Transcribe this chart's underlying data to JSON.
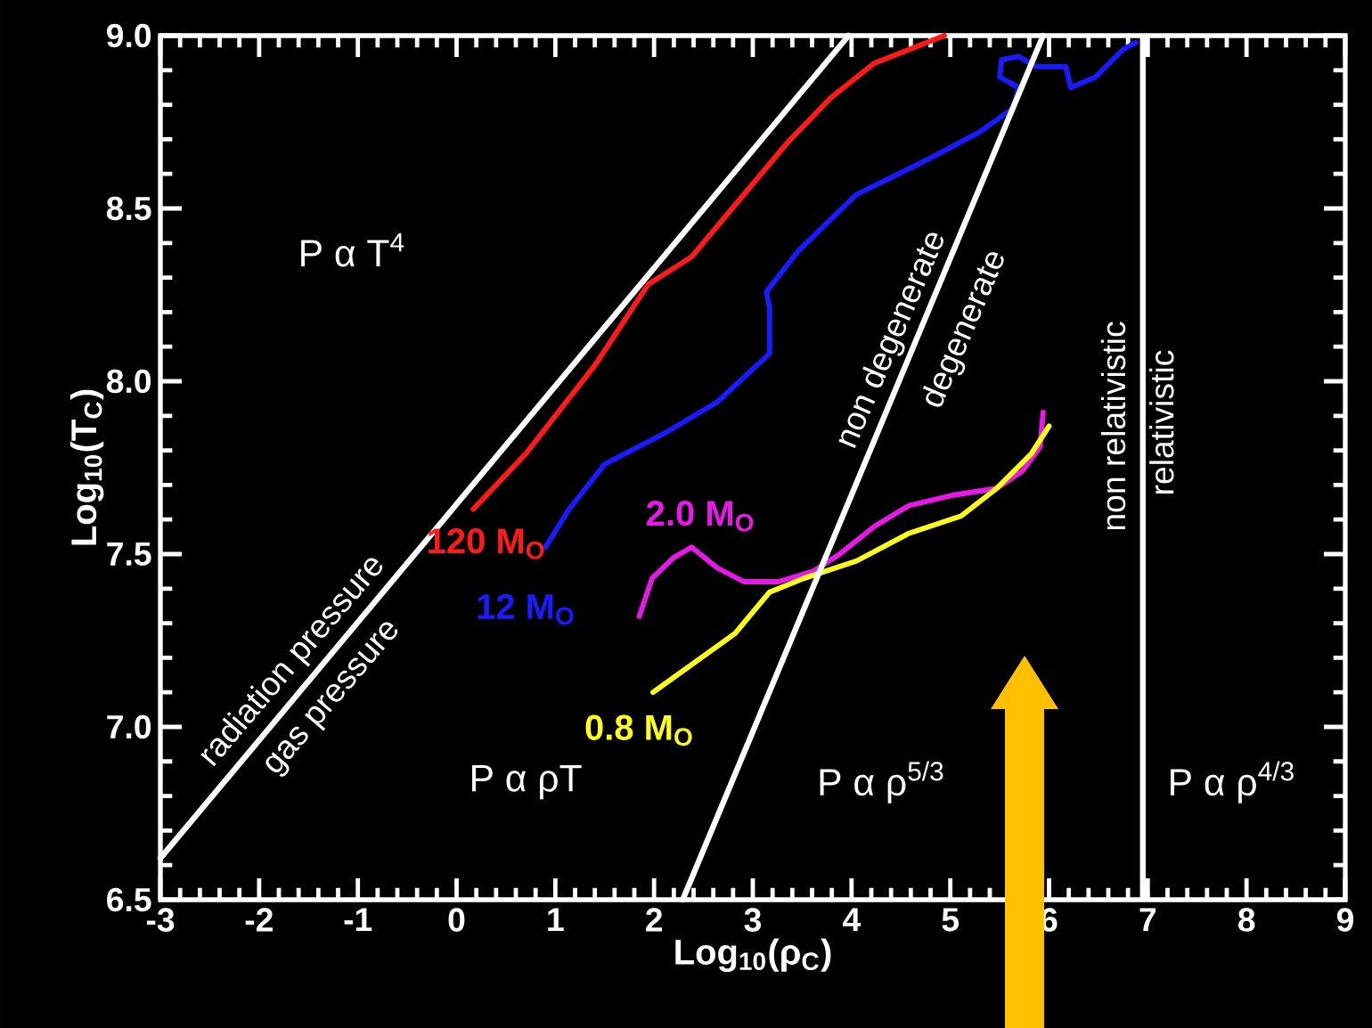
{
  "chart_data": {
    "type": "line",
    "xlabel": "Log$_{10}$(ρ$_{C}$)",
    "ylabel": "Log$_{10}$(T$_{C}$)",
    "xlim": [
      -3,
      9
    ],
    "ylim": [
      6.5,
      9.0
    ],
    "xticks": [
      -3,
      -2,
      -1,
      0,
      1,
      2,
      3,
      4,
      5,
      6,
      7,
      8,
      9
    ],
    "yticks": [
      {
        "value": 6.5,
        "label": "6.5"
      },
      {
        "value": 7.0,
        "label": "7.0"
      },
      {
        "value": 7.5,
        "label": "7.5"
      },
      {
        "value": 8.0,
        "label": "8.0"
      },
      {
        "value": 8.5,
        "label": "8.5"
      },
      {
        "value": 9.0,
        "label": "9.0"
      }
    ],
    "marker": "none",
    "line_style": "solid",
    "series": [
      {
        "name": "120 M$_{O}$",
        "color": "#ff1a1a",
        "x": [
          0.17,
          0.7,
          1.41,
          1.94,
          2.38,
          2.82,
          3.35,
          3.79,
          4.23,
          4.94
        ],
        "values": [
          7.63,
          7.79,
          8.05,
          8.28,
          8.36,
          8.51,
          8.69,
          8.82,
          8.92,
          9.0
        ]
      },
      {
        "name": "12 M$_{O}$",
        "color": "#1a1aff",
        "x": [
          0.9,
          1.14,
          1.5,
          2.11,
          2.64,
          3.17,
          3.17,
          3.14,
          3.47,
          4.05,
          4.76,
          5.29,
          5.64,
          5.69,
          5.5,
          5.52,
          5.69,
          5.87,
          6.17,
          6.22,
          6.47,
          6.75,
          6.88
        ],
        "values": [
          7.52,
          7.63,
          7.76,
          7.85,
          7.94,
          8.08,
          8.21,
          8.26,
          8.38,
          8.54,
          8.64,
          8.72,
          8.79,
          8.85,
          8.88,
          8.93,
          8.94,
          8.91,
          8.91,
          8.85,
          8.88,
          8.96,
          8.98
        ]
      },
      {
        "name": "2.0 M$_{O}$",
        "color": "#e619e6",
        "x": [
          1.85,
          1.98,
          2.2,
          2.38,
          2.64,
          2.91,
          3.26,
          3.61,
          3.88,
          4.23,
          4.58,
          5.02,
          5.47,
          5.73,
          5.91,
          5.94
        ],
        "values": [
          7.32,
          7.43,
          7.49,
          7.52,
          7.46,
          7.42,
          7.42,
          7.45,
          7.5,
          7.58,
          7.64,
          7.67,
          7.69,
          7.74,
          7.81,
          7.91
        ]
      },
      {
        "name": "0.8 M$_{O}$",
        "color": "#ffff1a",
        "x": [
          1.99,
          2.38,
          2.82,
          3.17,
          3.52,
          4.05,
          4.58,
          5.11,
          5.47,
          5.82,
          6.0
        ],
        "values": [
          7.1,
          7.18,
          7.27,
          7.39,
          7.43,
          7.48,
          7.56,
          7.61,
          7.69,
          7.79,
          7.87
        ]
      },
      {
        "color": "#ffffff",
        "x": [
          -3,
          3.97
        ],
        "values": [
          6.62,
          9.0
        ]
      },
      {
        "color": "#ffffff",
        "x": [
          2.29,
          5.94
        ],
        "values": [
          6.5,
          9.0
        ]
      }
    ],
    "ref_lines": [
      {
        "axis": "x",
        "value": 6.95,
        "color": "#ffffff"
      }
    ],
    "annotations": [
      "radiation pressure",
      "gas pressure",
      "non degenerate",
      "degenerate",
      "non relativistic",
      "relativistic",
      "P α T$^{4}$",
      "P α ρT",
      "P α ρ$^{5/3}$",
      "P α ρ$^{4/3}$"
    ]
  }
}
